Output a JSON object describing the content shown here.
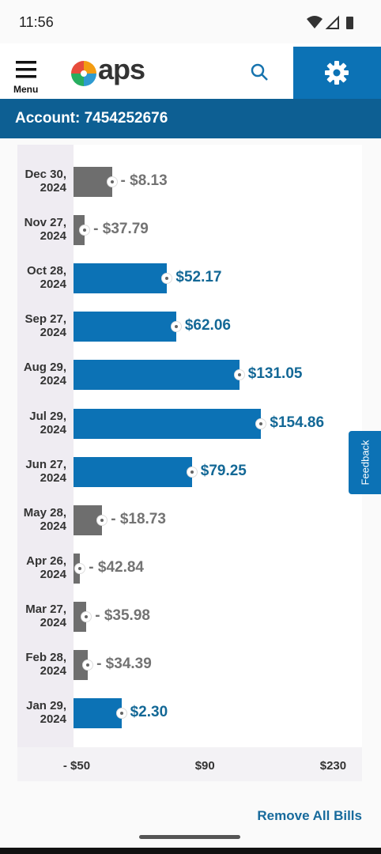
{
  "status": {
    "time": "11:56"
  },
  "header": {
    "menu_label": "Menu",
    "logo_text": "aps"
  },
  "account": "Account: 7454252676",
  "chart_data": {
    "type": "bar",
    "orientation": "horizontal",
    "categories": [
      "Dec 30, 2024",
      "Nov 27, 2024",
      "Oct 28, 2024",
      "Sep 27, 2024",
      "Aug 29, 2024",
      "Jul 29, 2024",
      "Jun 27, 2024",
      "May 28, 2024",
      "Apr 26, 2024",
      "Mar 27, 2024",
      "Feb 28, 2024",
      "Jan 29, 2024"
    ],
    "values": [
      -8.13,
      -37.79,
      52.17,
      62.06,
      131.05,
      154.86,
      79.25,
      -18.73,
      -42.84,
      -35.98,
      -34.39,
      2.3
    ],
    "value_labels": [
      "- $8.13",
      "- $37.79",
      "$52.17",
      "$62.06",
      "$131.05",
      "$154.86",
      "$79.25",
      "- $18.73",
      "- $42.84",
      "- $35.98",
      "- $34.39",
      "$2.30"
    ],
    "colors": {
      "positive": "#0c72b5",
      "negative": "#6e6e6e"
    },
    "label_colors": {
      "positive": "#136896",
      "negative": "#737373"
    },
    "xlim": [
      -50,
      265
    ],
    "xticks": [
      {
        "value": -50,
        "label": "- $50"
      },
      {
        "value": 90,
        "label": "$90"
      },
      {
        "value": 230,
        "label": "$230"
      }
    ]
  },
  "feedback": "Feedback",
  "footer": {
    "link": "Remove All Bills"
  }
}
